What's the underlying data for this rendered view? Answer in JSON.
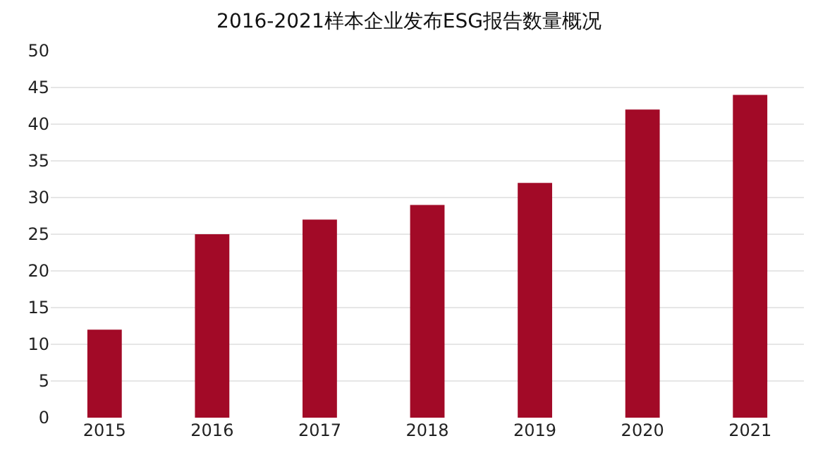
{
  "chart_data": {
    "type": "bar",
    "title": "2016-2021样本企业发布ESG报告数量概况",
    "categories": [
      "2015",
      "2016",
      "2017",
      "2018",
      "2019",
      "2020",
      "2021"
    ],
    "values": [
      12,
      25,
      27,
      29,
      32,
      42,
      44
    ],
    "color": "#a20a27",
    "ylim": [
      0,
      50
    ],
    "yticks": [
      0,
      5,
      10,
      15,
      20,
      25,
      30,
      35,
      40,
      45,
      50
    ],
    "grid": "y",
    "legend": false
  }
}
